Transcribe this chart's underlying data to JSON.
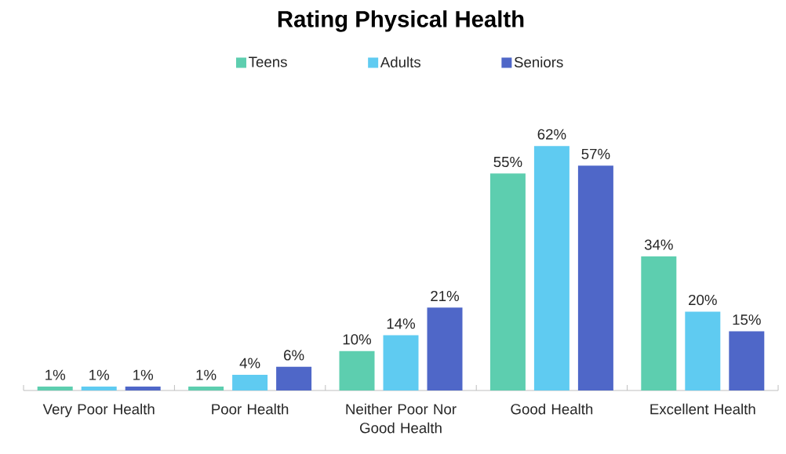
{
  "chart_data": {
    "type": "bar",
    "title": "Rating Physical Health",
    "categories": [
      "Very Poor Health",
      "Poor Health",
      "Neither Poor Nor Good Health",
      "Good Health",
      "Excellent Health"
    ],
    "series": [
      {
        "name": "Teens",
        "color": "#5dceaf",
        "values": [
          1,
          1,
          10,
          55,
          34
        ],
        "value_labels": [
          "1%",
          "1%",
          "10%",
          "55%",
          "34%"
        ]
      },
      {
        "name": "Adults",
        "color": "#5fcbf1",
        "values": [
          1,
          4,
          14,
          62,
          20
        ],
        "value_labels": [
          "1%",
          "4%",
          "14%",
          "62%",
          "20%"
        ]
      },
      {
        "name": "Seniors",
        "color": "#4f67c8",
        "values": [
          1,
          6,
          21,
          57,
          15
        ],
        "value_labels": [
          "1%",
          "6%",
          "21%",
          "57%",
          "15%"
        ]
      }
    ],
    "legend": "top"
  }
}
